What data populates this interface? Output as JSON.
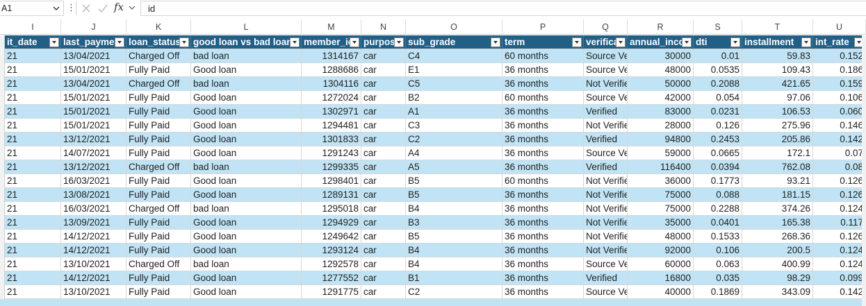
{
  "name_box": {
    "value": "A1"
  },
  "formula_bar": {
    "fx": "fx",
    "value": "id"
  },
  "column_letters": [
    "I",
    "J",
    "K",
    "L",
    "M",
    "N",
    "O",
    "P",
    "Q",
    "R",
    "S",
    "T",
    "U"
  ],
  "headers": [
    "it_date",
    "last_paymen",
    "loan_status",
    "good loan vs bad loan",
    "member_id",
    "purpos",
    "sub_grade",
    "term",
    "verifica",
    "annual_inco",
    "dti",
    "installment",
    "int_rate"
  ],
  "rows": [
    [
      "21",
      "13/04/2021",
      "Charged Off",
      "bad loan",
      "1314167",
      "car",
      "C4",
      "60 months",
      "Source Ve",
      "30000",
      "0.01",
      "59.83",
      "0.152"
    ],
    [
      "21",
      "15/01/2021",
      "Fully Paid",
      "Good loan",
      "1288686",
      "car",
      "E1",
      "36 months",
      "Source Ve",
      "48000",
      "0.0535",
      "109.43",
      "0.186"
    ],
    [
      "21",
      "13/04/2021",
      "Charged Off",
      "bad loan",
      "1304116",
      "car",
      "C5",
      "36 months",
      "Not Verifie",
      "50000",
      "0.2088",
      "421.65",
      "0.159"
    ],
    [
      "21",
      "15/01/2021",
      "Fully Paid",
      "Good loan",
      "1272024",
      "car",
      "B2",
      "60 months",
      "Source Ve",
      "42000",
      "0.054",
      "97.06",
      "0.106"
    ],
    [
      "21",
      "15/01/2021",
      "Fully Paid",
      "Good loan",
      "1302971",
      "car",
      "A1",
      "36 months",
      "Verified",
      "83000",
      "0.0231",
      "106.53",
      "0.060"
    ],
    [
      "21",
      "15/01/2021",
      "Fully Paid",
      "Good loan",
      "1294481",
      "car",
      "C3",
      "36 months",
      "Not Verifie",
      "28000",
      "0.126",
      "275.96",
      "0.146"
    ],
    [
      "21",
      "13/12/2021",
      "Fully Paid",
      "Good loan",
      "1301833",
      "car",
      "C2",
      "36 months",
      "Verified",
      "94800",
      "0.2453",
      "205.86",
      "0.142"
    ],
    [
      "21",
      "14/07/2021",
      "Fully Paid",
      "Good loan",
      "1291243",
      "car",
      "A4",
      "36 months",
      "Source Ve",
      "59000",
      "0.0665",
      "172.1",
      "0.07"
    ],
    [
      "21",
      "13/12/2021",
      "Charged Off",
      "bad loan",
      "1299335",
      "car",
      "A5",
      "36 months",
      "Verified",
      "116400",
      "0.0394",
      "762.08",
      "0.08"
    ],
    [
      "21",
      "16/03/2021",
      "Fully Paid",
      "Good loan",
      "1298401",
      "car",
      "B5",
      "60 months",
      "Not Verifie",
      "36000",
      "0.1773",
      "93.21",
      "0.126"
    ],
    [
      "21",
      "13/08/2021",
      "Fully Paid",
      "Good loan",
      "1289131",
      "car",
      "B5",
      "36 months",
      "Not Verifie",
      "75000",
      "0.088",
      "181.15",
      "0.126"
    ],
    [
      "21",
      "16/03/2021",
      "Charged Off",
      "bad loan",
      "1295018",
      "car",
      "B4",
      "36 months",
      "Not Verifie",
      "75000",
      "0.2288",
      "374.26",
      "0.124"
    ],
    [
      "21",
      "13/09/2021",
      "Fully Paid",
      "Good loan",
      "1294929",
      "car",
      "B3",
      "36 months",
      "Not Verifie",
      "35000",
      "0.0401",
      "165.38",
      "0.117"
    ],
    [
      "21",
      "14/12/2021",
      "Fully Paid",
      "Good loan",
      "1249642",
      "car",
      "B5",
      "36 months",
      "Not Verifie",
      "48000",
      "0.1533",
      "268.36",
      "0.126"
    ],
    [
      "21",
      "14/12/2021",
      "Fully Paid",
      "Good loan",
      "1293124",
      "car",
      "B4",
      "36 months",
      "Not Verifie",
      "92000",
      "0.106",
      "200.5",
      "0.124"
    ],
    [
      "21",
      "13/10/2021",
      "Charged Off",
      "bad loan",
      "1292578",
      "car",
      "B4",
      "36 months",
      "Source Ve",
      "60000",
      "0.063",
      "400.99",
      "0.124"
    ],
    [
      "21",
      "14/12/2021",
      "Fully Paid",
      "Good loan",
      "1277552",
      "car",
      "B1",
      "36 months",
      "Verified",
      "16800",
      "0.035",
      "98.29",
      "0.099"
    ],
    [
      "21",
      "13/10/2021",
      "Fully Paid",
      "Good loan",
      "1291775",
      "car",
      "C2",
      "36 months",
      "Source Ve",
      "40000",
      "0.1869",
      "343.09",
      "0.142"
    ]
  ],
  "colors": {
    "header_bg": "#215f86",
    "band_bg": "#c0e4f5",
    "header_text": "#ffffff"
  },
  "icons": [
    "chevron-down-icon",
    "more-options-icon",
    "cancel-icon",
    "enter-icon",
    "function-icon",
    "filter-dropdown-icon"
  ]
}
